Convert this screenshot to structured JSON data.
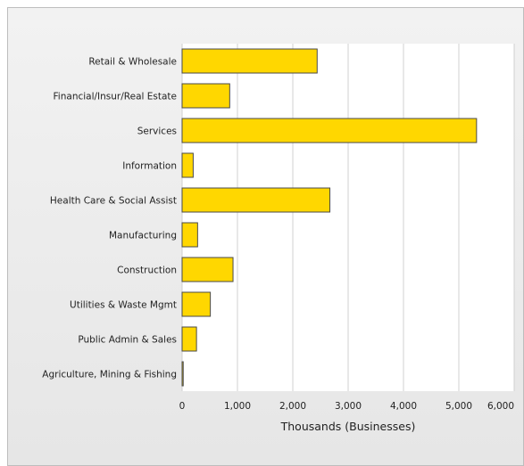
{
  "chart_data": {
    "type": "bar",
    "orientation": "horizontal",
    "categories": [
      "Retail & Wholesale",
      "Financial/Insur/Real Estate",
      "Services",
      "Information",
      "Health Care & Social Assist",
      "Manufacturing",
      "Construction",
      "Utilities & Waste Mgmt",
      "Public Admin & Sales",
      "Agriculture, Mining & Fishing"
    ],
    "values": [
      2440,
      860,
      5320,
      200,
      2670,
      280,
      920,
      510,
      260,
      20
    ],
    "xlabel": "Thousands (Businesses)",
    "xlim": [
      0,
      6000
    ],
    "xticks": [
      0,
      1000,
      2000,
      3000,
      4000,
      5000,
      6000
    ],
    "xtick_labels": [
      "0",
      "1,000",
      "2,000",
      "3,000",
      "4,000",
      "5,000",
      "6,000"
    ],
    "grid": true,
    "bar_color": "#ffd700",
    "bar_border_color": "#4a4a4a"
  }
}
